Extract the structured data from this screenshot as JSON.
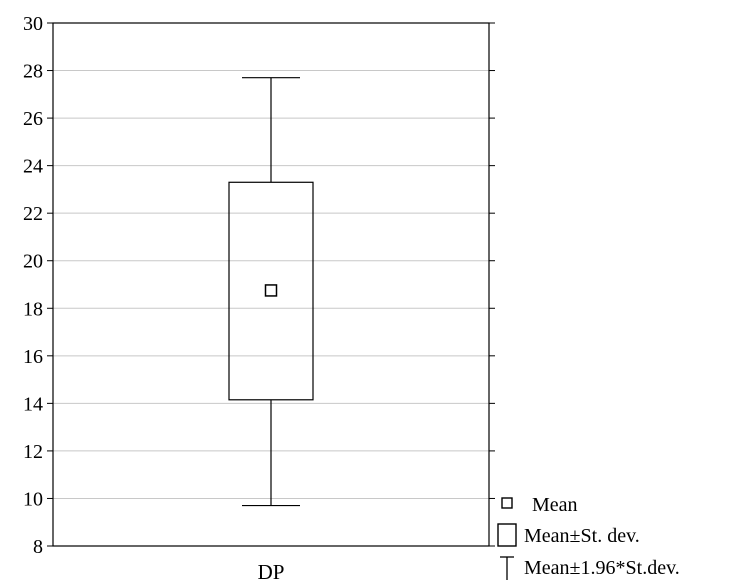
{
  "chart_data": {
    "type": "box",
    "categories": [
      "DP"
    ],
    "series": [
      {
        "category": "DP",
        "mean": 18.75,
        "mean_minus_sd": 14.15,
        "mean_plus_sd": 23.3,
        "mean_minus_1_96_sd": 9.7,
        "mean_plus_1_96_sd": 27.7
      }
    ],
    "ylim": [
      8,
      30
    ],
    "yticks": [
      8,
      10,
      12,
      14,
      16,
      18,
      20,
      22,
      24,
      26,
      28,
      30
    ],
    "grid": true,
    "legend_position": "bottom-right",
    "legend": [
      {
        "label": "Mean",
        "marker": "small-square"
      },
      {
        "label": "Mean±St. dev.",
        "marker": "box"
      },
      {
        "label": "Mean±1.96*St.dev.",
        "marker": "whisker"
      }
    ],
    "colors": {
      "line": "#000000",
      "grid": "#c8c8c8",
      "background": "#ffffff"
    }
  }
}
